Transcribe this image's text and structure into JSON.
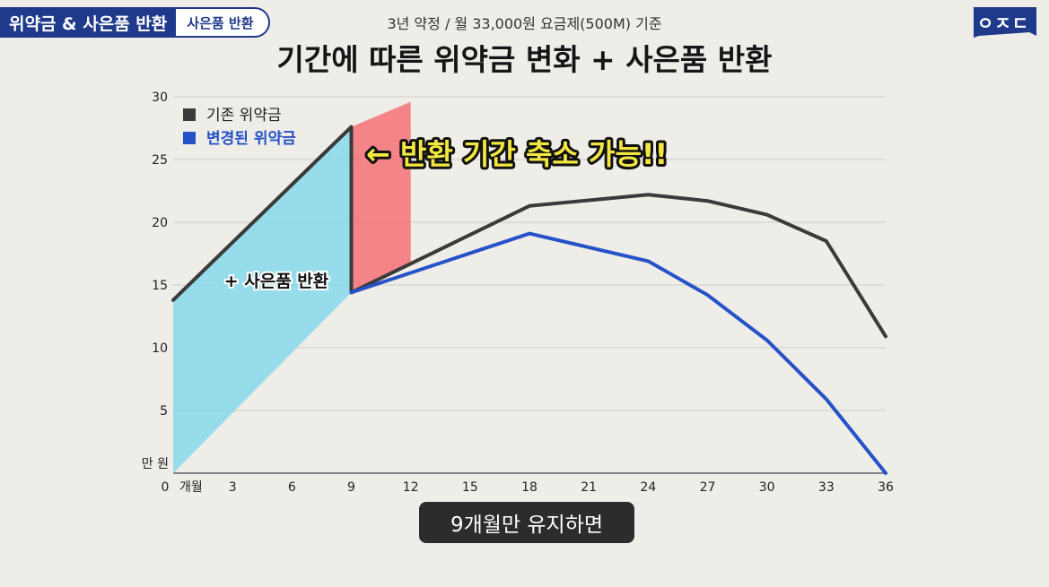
{
  "header": {
    "tag_main": "위약금 & 사은품 반환",
    "tag_sub": "사은품 반환",
    "logo": "ㅇㅈㄷ"
  },
  "chart_data": {
    "type": "line",
    "subtitle": "3년 약정 / 월 33,000원 요금제(500M) 기준",
    "title": "기간에 따른 위약금 변화 + 사은품 반환",
    "ylabel": "만 원",
    "xlabel_unit": "개월",
    "xlim": [
      0,
      36
    ],
    "ylim": [
      0,
      30
    ],
    "x_ticks": [
      0,
      3,
      6,
      9,
      12,
      15,
      18,
      21,
      24,
      27,
      30,
      33,
      36
    ],
    "y_ticks": [
      5,
      10,
      15,
      20,
      25,
      30
    ],
    "grid": true,
    "legend_position": "top-left",
    "series": [
      {
        "name": "기존 위약금",
        "color": "#3a3a3a",
        "points": [
          [
            0,
            13.8
          ],
          [
            9,
            27.6
          ],
          [
            9,
            14.4
          ],
          [
            18,
            21.3
          ],
          [
            24,
            22.2
          ],
          [
            27,
            21.7
          ],
          [
            30,
            20.6
          ],
          [
            33,
            18.5
          ],
          [
            36,
            10.9
          ]
        ]
      },
      {
        "name": "변경된 위약금",
        "color": "#2552c8",
        "points": [
          [
            9,
            14.4
          ],
          [
            18,
            19.1
          ],
          [
            24,
            16.9
          ],
          [
            27,
            14.2
          ],
          [
            30,
            10.6
          ],
          [
            33,
            5.9
          ],
          [
            36,
            0
          ]
        ]
      }
    ],
    "regions": [
      {
        "name": "gift-return-area",
        "color": "#8cd9ea",
        "points": [
          [
            0,
            0
          ],
          [
            0,
            13.8
          ],
          [
            9,
            27.6
          ],
          [
            9,
            14.4
          ]
        ]
      },
      {
        "name": "shortened-period-area",
        "color": "#f4787c",
        "points": [
          [
            9,
            14.4
          ],
          [
            9,
            27.6
          ],
          [
            12,
            29.6
          ],
          [
            12,
            16.6
          ]
        ]
      }
    ],
    "annotations": {
      "gift_return": "+ 사은품 반환",
      "shortened": "← 반환 기간 축소 가능!!"
    }
  },
  "caption": "9개월만 유지하면"
}
